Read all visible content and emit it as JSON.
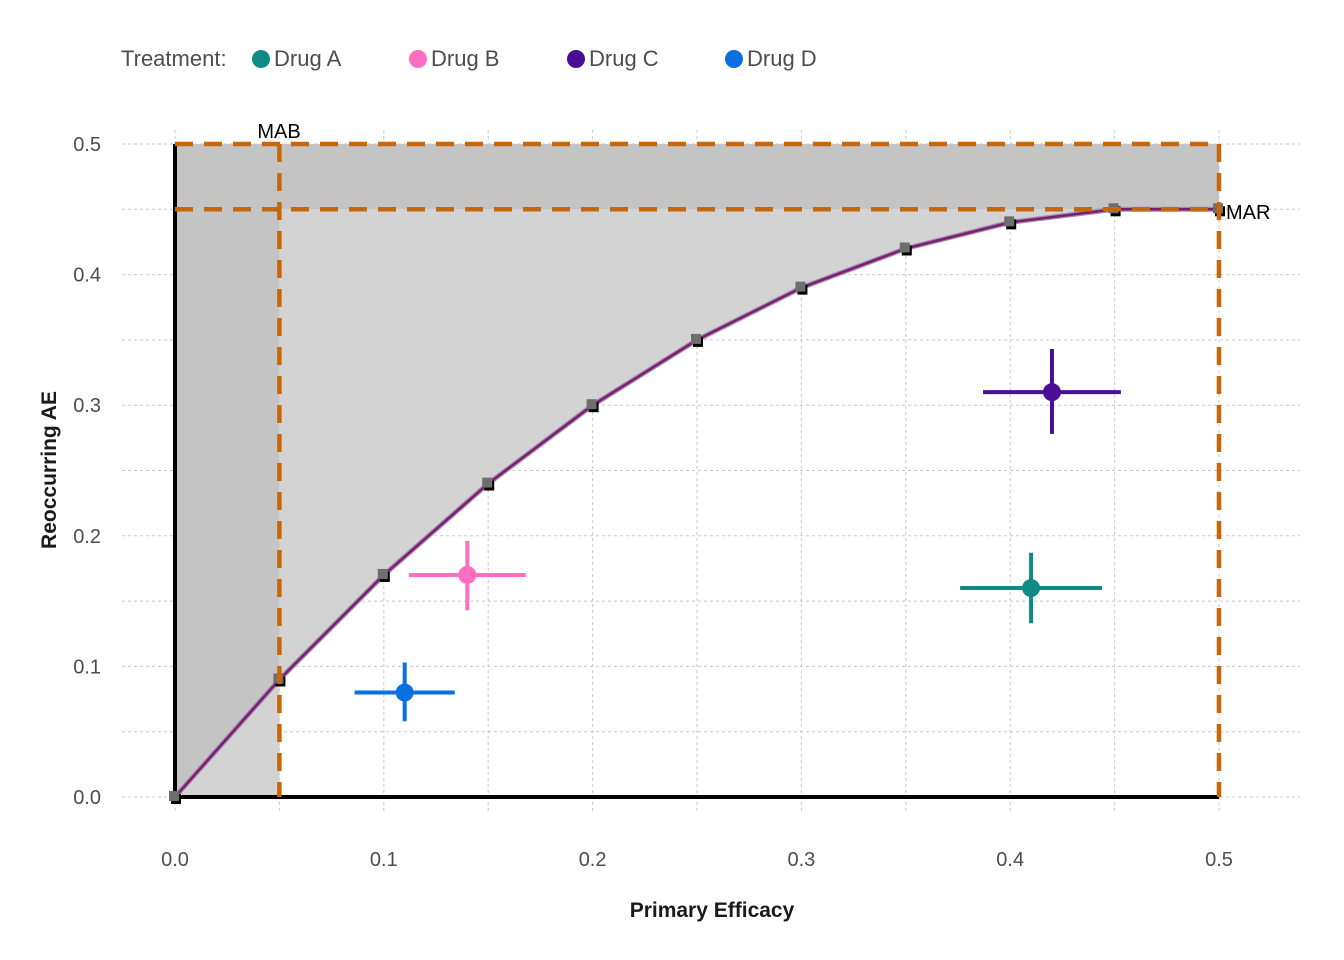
{
  "legend": {
    "title": "Treatment:",
    "items": [
      {
        "label": "Drug A",
        "color": "#0E8A87"
      },
      {
        "label": "Drug B",
        "color": "#FF6EC0"
      },
      {
        "label": "Drug C",
        "color": "#4A0D98"
      },
      {
        "label": "Drug D",
        "color": "#0A6FE0"
      }
    ]
  },
  "chart_data": {
    "type": "scatter",
    "xlabel": "Primary Efficacy",
    "ylabel": "Reoccurring AE",
    "xlim": [
      0,
      0.5
    ],
    "ylim": [
      0,
      0.5
    ],
    "x_ticks": [
      "0.0",
      "0.1",
      "0.2",
      "0.3",
      "0.4",
      "0.5"
    ],
    "y_ticks": [
      "0.0",
      "0.1",
      "0.2",
      "0.3",
      "0.4",
      "0.5"
    ],
    "grid": true,
    "legend_position": "top-left",
    "frontier": {
      "x": [
        0,
        0.05,
        0.1,
        0.15,
        0.2,
        0.25,
        0.3,
        0.35,
        0.4,
        0.45,
        0.5
      ],
      "y": [
        0,
        0.09,
        0.17,
        0.24,
        0.3,
        0.35,
        0.39,
        0.42,
        0.44,
        0.45,
        0.45
      ],
      "color": "#7B1F6B"
    },
    "thresholds": {
      "mab": {
        "x": 0.05,
        "label": "MAB"
      },
      "mar": {
        "y": 0.45,
        "label": "MAR"
      },
      "x_max": 0.5,
      "y_max": 0.5,
      "color": "#C8660A"
    },
    "series": [
      {
        "name": "Drug A",
        "x": 0.41,
        "y": 0.16,
        "x_err": [
          0.376,
          0.444
        ],
        "y_err": [
          0.133,
          0.187
        ],
        "color": "#0E8A87"
      },
      {
        "name": "Drug B",
        "x": 0.14,
        "y": 0.17,
        "x_err": [
          0.112,
          0.168
        ],
        "y_err": [
          0.143,
          0.196
        ],
        "color": "#FF6EC0"
      },
      {
        "name": "Drug C",
        "x": 0.42,
        "y": 0.31,
        "x_err": [
          0.387,
          0.453
        ],
        "y_err": [
          0.278,
          0.343
        ],
        "color": "#4A0D98"
      },
      {
        "name": "Drug D",
        "x": 0.11,
        "y": 0.08,
        "x_err": [
          0.086,
          0.134
        ],
        "y_err": [
          0.058,
          0.103
        ],
        "color": "#0A6FE0"
      }
    ]
  }
}
